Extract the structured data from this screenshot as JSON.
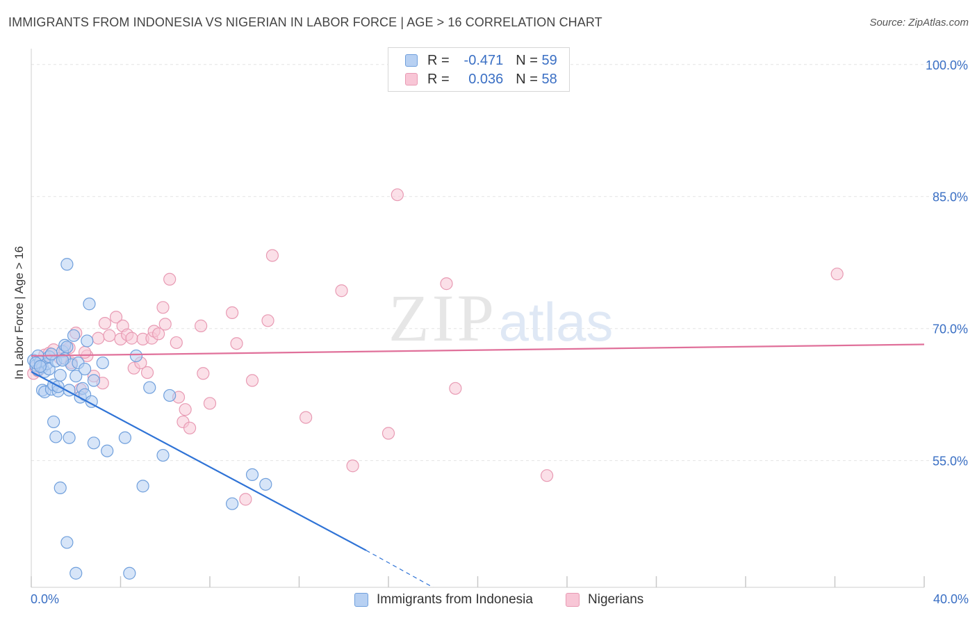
{
  "header": {
    "title": "IMMIGRANTS FROM INDONESIA VS NIGERIAN IN LABOR FORCE | AGE > 16 CORRELATION CHART",
    "source": "Source: ZipAtlas.com"
  },
  "legend": {
    "rows": [
      {
        "r_label": "R =",
        "r_value": "-0.471",
        "n_label": "N =",
        "n_value": "59"
      },
      {
        "r_label": "R =",
        "r_value": "0.036",
        "n_label": "N =",
        "n_value": "58"
      }
    ]
  },
  "watermark": {
    "zip": "ZIP",
    "atlas": "atlas"
  },
  "colors": {
    "indonesia_fill": "#b7d0f2",
    "indonesia_stroke": "#6f9fdc",
    "indonesia_line": "#2f73d6",
    "nigeria_fill": "#f8c6d6",
    "nigeria_stroke": "#e89ab3",
    "nigeria_line": "#e0709a",
    "tick_label": "#3a6fc4",
    "grid": "#e4e4e4"
  },
  "chart_data": {
    "type": "scatter",
    "title": "IMMIGRANTS FROM INDONESIA VS NIGERIAN IN LABOR FORCE | AGE > 16 CORRELATION CHART",
    "xlabel": "",
    "ylabel": "In Labor Force | Age > 16",
    "xlim": [
      0,
      40
    ],
    "ylim": [
      40.6,
      101.8
    ],
    "x_tick_labels": [
      "0.0%",
      "40.0%"
    ],
    "y_ticks": [
      55,
      70,
      85,
      100
    ],
    "y_tick_labels": [
      "55.0%",
      "70.0%",
      "85.0%",
      "100.0%"
    ],
    "grid": true,
    "legend_placement": "top-center",
    "series": [
      {
        "name": "Immigrants from Indonesia",
        "points": [
          [
            0.1,
            66.4
          ],
          [
            0.2,
            65.8
          ],
          [
            0.3,
            66.9
          ],
          [
            0.3,
            65.3
          ],
          [
            0.4,
            66.2
          ],
          [
            0.5,
            65.6
          ],
          [
            0.5,
            63.0
          ],
          [
            0.6,
            65.1
          ],
          [
            0.6,
            62.8
          ],
          [
            0.7,
            66.0
          ],
          [
            0.8,
            66.8
          ],
          [
            0.8,
            65.4
          ],
          [
            0.9,
            63.1
          ],
          [
            1.0,
            59.4
          ],
          [
            1.0,
            63.6
          ],
          [
            1.1,
            57.7
          ],
          [
            1.1,
            66.3
          ],
          [
            1.2,
            62.9
          ],
          [
            1.2,
            63.4
          ],
          [
            1.3,
            64.7
          ],
          [
            1.3,
            51.9
          ],
          [
            1.4,
            67.4
          ],
          [
            1.5,
            68.1
          ],
          [
            1.5,
            66.6
          ],
          [
            1.6,
            67.9
          ],
          [
            1.6,
            45.7
          ],
          [
            1.6,
            77.3
          ],
          [
            1.7,
            57.6
          ],
          [
            1.7,
            63.0
          ],
          [
            1.8,
            65.9
          ],
          [
            1.9,
            69.2
          ],
          [
            2.0,
            64.6
          ],
          [
            2.0,
            42.2
          ],
          [
            2.1,
            66.1
          ],
          [
            2.2,
            62.2
          ],
          [
            2.3,
            63.2
          ],
          [
            2.4,
            65.4
          ],
          [
            2.4,
            62.5
          ],
          [
            2.5,
            68.6
          ],
          [
            2.6,
            72.8
          ],
          [
            2.7,
            61.7
          ],
          [
            2.8,
            57.0
          ],
          [
            2.8,
            64.1
          ],
          [
            3.2,
            66.1
          ],
          [
            3.4,
            56.1
          ],
          [
            4.2,
            57.6
          ],
          [
            4.4,
            42.2
          ],
          [
            4.7,
            66.9
          ],
          [
            5.0,
            52.1
          ],
          [
            5.3,
            63.3
          ],
          [
            5.9,
            55.6
          ],
          [
            6.2,
            62.4
          ],
          [
            9.0,
            50.1
          ],
          [
            9.9,
            53.4
          ],
          [
            10.5,
            52.3
          ],
          [
            0.2,
            66.1
          ],
          [
            0.4,
            65.7
          ],
          [
            0.9,
            67.1
          ],
          [
            1.4,
            66.4
          ]
        ]
      },
      {
        "name": "Nigerians",
        "points": [
          [
            0.1,
            64.9
          ],
          [
            0.3,
            65.2
          ],
          [
            0.6,
            67.0
          ],
          [
            0.8,
            67.2
          ],
          [
            1.0,
            67.6
          ],
          [
            1.3,
            66.6
          ],
          [
            1.5,
            67.5
          ],
          [
            1.7,
            67.8
          ],
          [
            2.0,
            69.5
          ],
          [
            2.2,
            63.1
          ],
          [
            2.5,
            66.9
          ],
          [
            2.8,
            64.6
          ],
          [
            3.0,
            68.9
          ],
          [
            3.2,
            63.8
          ],
          [
            3.3,
            70.6
          ],
          [
            3.5,
            69.2
          ],
          [
            3.8,
            71.3
          ],
          [
            4.0,
            68.8
          ],
          [
            4.1,
            70.3
          ],
          [
            4.3,
            69.3
          ],
          [
            4.5,
            68.9
          ],
          [
            4.6,
            65.5
          ],
          [
            4.9,
            66.1
          ],
          [
            5.0,
            68.8
          ],
          [
            5.2,
            65.0
          ],
          [
            5.4,
            68.9
          ],
          [
            5.5,
            69.7
          ],
          [
            5.7,
            69.4
          ],
          [
            5.9,
            72.4
          ],
          [
            6.0,
            70.5
          ],
          [
            6.2,
            75.6
          ],
          [
            6.5,
            68.4
          ],
          [
            6.6,
            62.2
          ],
          [
            6.8,
            59.4
          ],
          [
            6.9,
            60.8
          ],
          [
            7.1,
            58.7
          ],
          [
            7.6,
            70.3
          ],
          [
            7.7,
            64.9
          ],
          [
            8.0,
            61.5
          ],
          [
            9.0,
            71.8
          ],
          [
            9.2,
            68.3
          ],
          [
            9.6,
            50.6
          ],
          [
            9.9,
            64.1
          ],
          [
            10.8,
            78.3
          ],
          [
            10.6,
            70.9
          ],
          [
            12.3,
            59.9
          ],
          [
            13.9,
            74.3
          ],
          [
            14.4,
            54.4
          ],
          [
            16.0,
            58.1
          ],
          [
            16.4,
            85.2
          ],
          [
            18.6,
            75.1
          ],
          [
            19.0,
            63.2
          ],
          [
            23.1,
            53.3
          ],
          [
            36.1,
            76.2
          ],
          [
            0.2,
            65.6
          ],
          [
            0.5,
            66.3
          ],
          [
            1.8,
            66.1
          ],
          [
            2.4,
            67.3
          ]
        ]
      }
    ],
    "trend_lines": [
      {
        "series": "Immigrants from Indonesia",
        "solid": [
          [
            0.0,
            65.1
          ],
          [
            15.0,
            44.8
          ]
        ],
        "dashed": [
          [
            15.0,
            44.8
          ],
          [
            18.0,
            40.6
          ]
        ]
      },
      {
        "series": "Nigerians",
        "solid": [
          [
            0.0,
            66.9
          ],
          [
            40.0,
            68.2
          ]
        ]
      }
    ]
  }
}
